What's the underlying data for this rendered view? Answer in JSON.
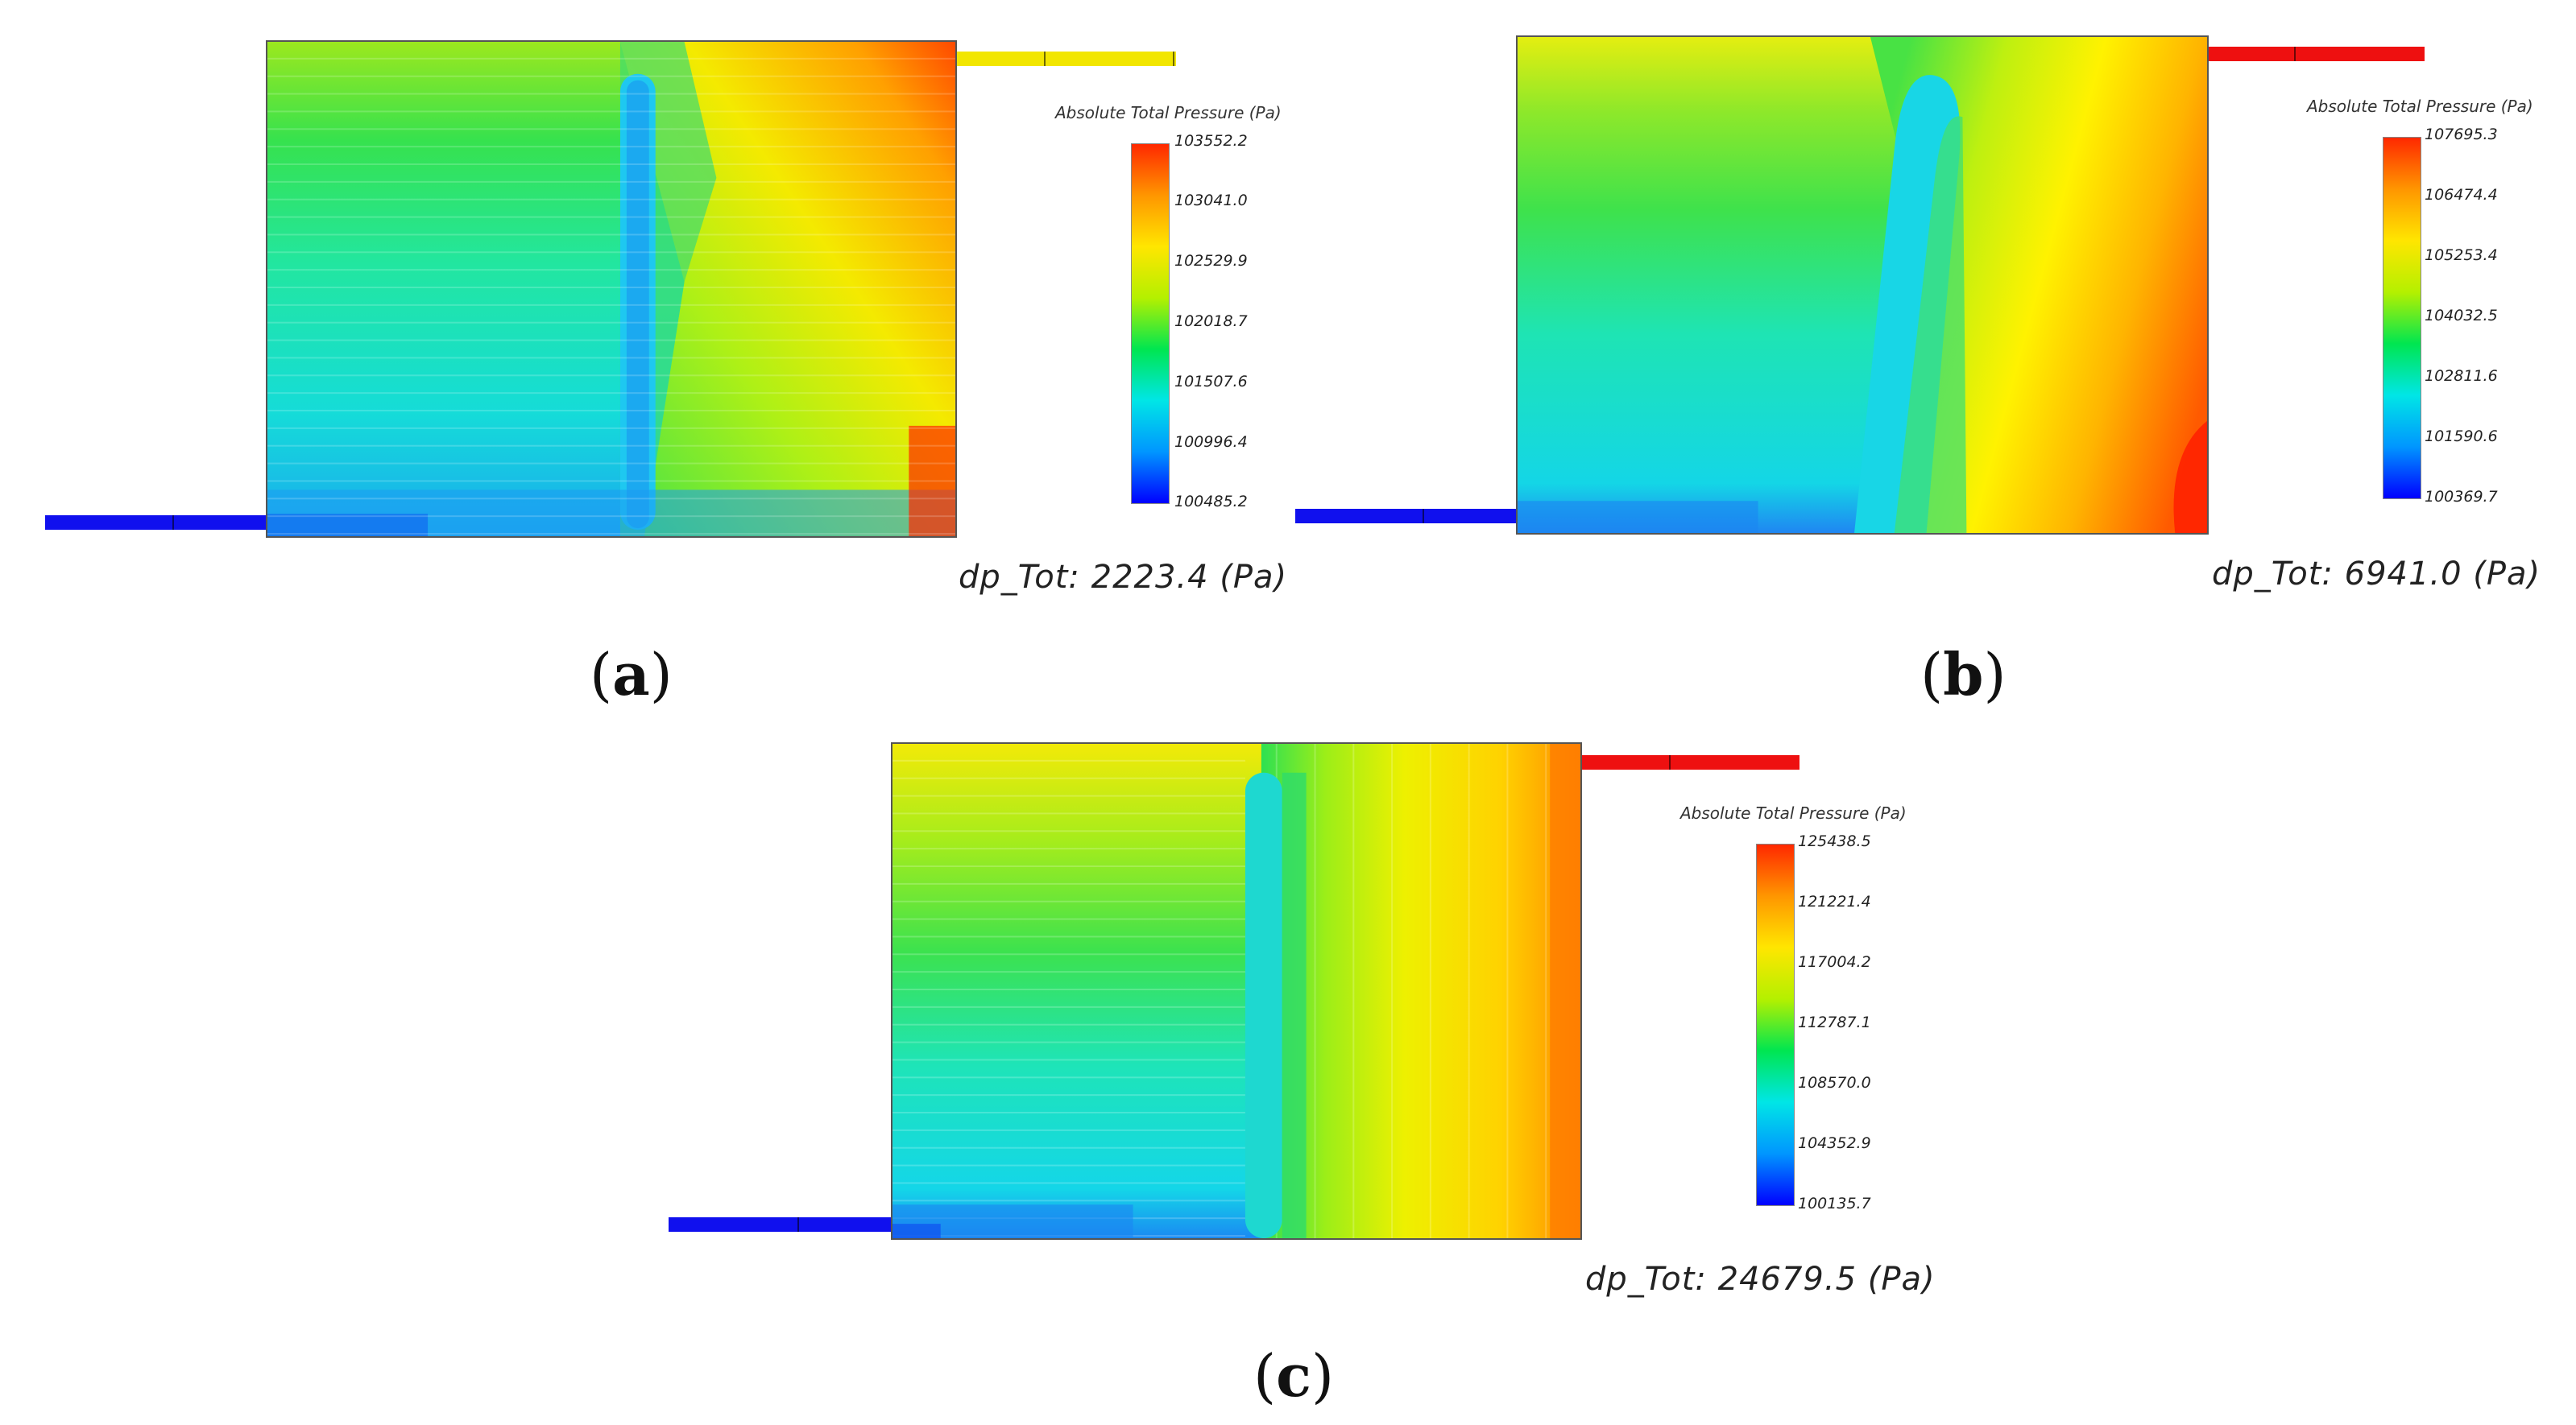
{
  "panels": [
    {
      "id": "a",
      "caption_open": "(",
      "caption_letter": "a",
      "caption_close": ")",
      "legend_title": "Absolute Total Pressure (Pa)",
      "ticks": [
        "103552.2",
        "103041.0",
        "102529.9",
        "102018.7",
        "101507.6",
        "100996.4",
        "100485.2"
      ],
      "dp_label": "dp_Tot: 2223.4 (Pa)",
      "inlet_color": "#1010ee",
      "outlet_color": "#f2e600"
    },
    {
      "id": "b",
      "caption_open": "(",
      "caption_letter": "b",
      "caption_close": ")",
      "legend_title": "Absolute Total Pressure (Pa)",
      "ticks": [
        "107695.3",
        "106474.4",
        "105253.4",
        "104032.5",
        "102811.6",
        "101590.6",
        "100369.7"
      ],
      "dp_label": "dp_Tot: 6941.0 (Pa)",
      "inlet_color": "#1010ee",
      "outlet_color": "#ee1010"
    },
    {
      "id": "c",
      "caption_open": "(",
      "caption_letter": "c",
      "caption_close": ")",
      "legend_title": "Absolute Total Pressure (Pa)",
      "ticks": [
        "125438.5",
        "121221.4",
        "117004.2",
        "112787.1",
        "108570.0",
        "104352.9",
        "100135.7"
      ],
      "dp_label": "dp_Tot: 24679.5 (Pa)",
      "inlet_color": "#1010ee",
      "outlet_color": "#ee1010"
    }
  ],
  "colormap": [
    "#0000ff",
    "#0096ff",
    "#00e6e6",
    "#00e650",
    "#b4f000",
    "#ffe600",
    "#ff9600",
    "#ff2800"
  ]
}
